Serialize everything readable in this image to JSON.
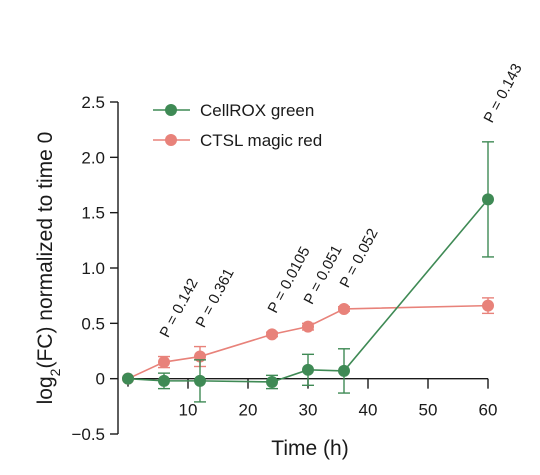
{
  "chart_data": {
    "type": "line",
    "xlabel": "Time (h)",
    "ylabel_main": "log",
    "ylabel_sub": "2",
    "ylabel_rest": "(FC) normalized to time 0",
    "xlim": [
      0,
      60
    ],
    "ylim": [
      -0.5,
      2.5
    ],
    "xticks": [
      10,
      20,
      30,
      40,
      50,
      60
    ],
    "xtick_labels": [
      "10",
      "20",
      "30",
      "40",
      "50",
      "60"
    ],
    "xminor": [
      0
    ],
    "yticks": [
      2.5,
      2.0,
      1.5,
      1.0,
      0.5,
      0,
      -0.5
    ],
    "ytick_labels": [
      "2.5",
      "2.0",
      "1.5",
      "1.0",
      "0.5",
      "0",
      "−0.5"
    ],
    "grid": false,
    "legend_position": "top-left",
    "series": [
      {
        "name": "CellROX green",
        "color": "#3f8a55",
        "x": [
          0,
          6,
          12,
          24,
          30,
          36,
          60
        ],
        "y": [
          0.0,
          -0.02,
          -0.02,
          -0.03,
          0.08,
          0.07,
          1.62
        ],
        "err": [
          0.0,
          0.07,
          0.19,
          0.06,
          0.14,
          0.2,
          0.52
        ]
      },
      {
        "name": "CTSL magic red",
        "color": "#e8827a",
        "x": [
          0,
          6,
          12,
          24,
          30,
          36,
          60
        ],
        "y": [
          0.0,
          0.15,
          0.2,
          0.4,
          0.47,
          0.63,
          0.66
        ],
        "err": [
          0.0,
          0.05,
          0.09,
          0.02,
          0.03,
          0.02,
          0.07
        ]
      }
    ],
    "annotations": [
      {
        "text": "P = 0.142",
        "x": 6
      },
      {
        "text": "P = 0.361",
        "x": 12
      },
      {
        "text": "P = 0.0105",
        "x": 24
      },
      {
        "text": "P = 0.051",
        "x": 30
      },
      {
        "text": "P = 0.052",
        "x": 36
      },
      {
        "text": "P = 0.143",
        "x": 60
      }
    ]
  }
}
